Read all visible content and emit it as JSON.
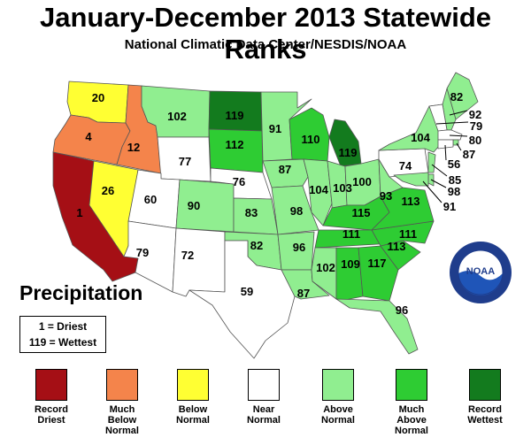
{
  "title": "January-December 2013 Statewide Ranks",
  "subtitle": "National Climatic Data Center/NESDIS/NOAA",
  "legend_heading": "Precipitation",
  "key": {
    "driest": "1 = Driest",
    "wettest": "119 = Wettest"
  },
  "categories": [
    {
      "id": "record-driest",
      "line1": "Record",
      "line2": "Driest",
      "line3": "",
      "color": "#a50f15"
    },
    {
      "id": "much-below",
      "line1": "Much",
      "line2": "Below",
      "line3": "Normal",
      "color": "#f4844b"
    },
    {
      "id": "below",
      "line1": "Below",
      "line2": "Normal",
      "line3": "",
      "color": "#ffff33"
    },
    {
      "id": "near",
      "line1": "Near",
      "line2": "Normal",
      "line3": "",
      "color": "#ffffff"
    },
    {
      "id": "above",
      "line1": "Above",
      "line2": "Normal",
      "line3": "",
      "color": "#90ee90"
    },
    {
      "id": "much-above",
      "line1": "Much",
      "line2": "Above",
      "line3": "Normal",
      "color": "#2ecc33"
    },
    {
      "id": "record-wettest",
      "line1": "Record",
      "line2": "Wettest",
      "line3": "",
      "color": "#137b1e"
    }
  ],
  "logo_text": "NOAA",
  "states": [
    {
      "name": "Washington",
      "rank": 20,
      "category": "below"
    },
    {
      "name": "Oregon",
      "rank": 4,
      "category": "much-below"
    },
    {
      "name": "California",
      "rank": 1,
      "category": "record-driest"
    },
    {
      "name": "Idaho",
      "rank": 12,
      "category": "much-below"
    },
    {
      "name": "Nevada",
      "rank": 26,
      "category": "below"
    },
    {
      "name": "Montana",
      "rank": 102,
      "category": "above"
    },
    {
      "name": "Wyoming",
      "rank": 77,
      "category": "near"
    },
    {
      "name": "Utah",
      "rank": 60,
      "category": "near"
    },
    {
      "name": "Arizona",
      "rank": 79,
      "category": "near"
    },
    {
      "name": "Colorado",
      "rank": 90,
      "category": "above"
    },
    {
      "name": "New Mexico",
      "rank": 72,
      "category": "near"
    },
    {
      "name": "North Dakota",
      "rank": 119,
      "category": "record-wettest"
    },
    {
      "name": "South Dakota",
      "rank": 112,
      "category": "much-above"
    },
    {
      "name": "Nebraska",
      "rank": 76,
      "category": "near"
    },
    {
      "name": "Kansas",
      "rank": 83,
      "category": "above"
    },
    {
      "name": "Oklahoma",
      "rank": 82,
      "category": "above"
    },
    {
      "name": "Texas",
      "rank": 59,
      "category": "near"
    },
    {
      "name": "Minnesota",
      "rank": 91,
      "category": "above"
    },
    {
      "name": "Iowa",
      "rank": 87,
      "category": "above"
    },
    {
      "name": "Missouri",
      "rank": 98,
      "category": "above"
    },
    {
      "name": "Arkansas",
      "rank": 96,
      "category": "above"
    },
    {
      "name": "Louisiana",
      "rank": 87,
      "category": "above"
    },
    {
      "name": "Wisconsin",
      "rank": 110,
      "category": "much-above"
    },
    {
      "name": "Illinois",
      "rank": 104,
      "category": "above"
    },
    {
      "name": "Michigan",
      "rank": 119,
      "category": "record-wettest"
    },
    {
      "name": "Indiana",
      "rank": 103,
      "category": "above"
    },
    {
      "name": "Ohio",
      "rank": 100,
      "category": "above"
    },
    {
      "name": "Kentucky",
      "rank": 115,
      "category": "much-above"
    },
    {
      "name": "Tennessee",
      "rank": 111,
      "category": "much-above"
    },
    {
      "name": "Mississippi",
      "rank": 102,
      "category": "above"
    },
    {
      "name": "Alabama",
      "rank": 109,
      "category": "much-above"
    },
    {
      "name": "Georgia",
      "rank": 117,
      "category": "much-above"
    },
    {
      "name": "Florida",
      "rank": 96,
      "category": "above"
    },
    {
      "name": "South Carolina",
      "rank": 113,
      "category": "much-above"
    },
    {
      "name": "North Carolina",
      "rank": 111,
      "category": "much-above"
    },
    {
      "name": "Virginia",
      "rank": 113,
      "category": "much-above"
    },
    {
      "name": "West Virginia",
      "rank": 93,
      "category": "above"
    },
    {
      "name": "Pennsylvania",
      "rank": 74,
      "category": "near"
    },
    {
      "name": "New York",
      "rank": 104,
      "category": "above"
    },
    {
      "name": "Maine",
      "rank": 82,
      "category": "above"
    },
    {
      "name": "New Hampshire",
      "rank": 92,
      "category": "above"
    },
    {
      "name": "Vermont",
      "rank": 79,
      "category": "near"
    },
    {
      "name": "Massachusetts",
      "rank": 80,
      "category": "near"
    },
    {
      "name": "Rhode Island",
      "rank": 87,
      "category": "above"
    },
    {
      "name": "Connecticut",
      "rank": 56,
      "category": "near"
    },
    {
      "name": "New Jersey",
      "rank": 85,
      "category": "above"
    },
    {
      "name": "Delaware",
      "rank": 98,
      "category": "above"
    },
    {
      "name": "Maryland",
      "rank": 91,
      "category": "above"
    }
  ]
}
